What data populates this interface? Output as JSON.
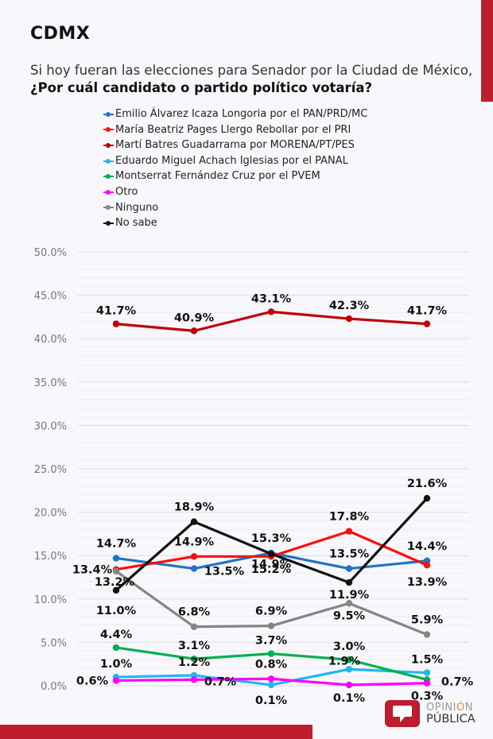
{
  "header": {
    "title": "CDMX",
    "subtitle_plain": "Si hoy fueran las elecciones para Senador por la Ciudad de México, ",
    "subtitle_bold": "¿Por cuál candidato o partido político votaría?"
  },
  "brand": {
    "accent_color": "#bd1e2d",
    "logo_line1_a": "OPINI",
    "logo_line1_b": "Ó",
    "logo_line1_c": "N",
    "logo_line2": "PÚBLICA",
    "logo_accent": "#f0882a"
  },
  "chart_data": {
    "type": "line",
    "title": "",
    "xlabel": "",
    "ylabel": "",
    "x": [
      1,
      2,
      3,
      4,
      5
    ],
    "categories": [
      "",
      "",
      "",
      "",
      ""
    ],
    "ylim": [
      0,
      50
    ],
    "yticks": [
      "0.0%",
      "5.0%",
      "10.0%",
      "15.0%",
      "20.0%",
      "25.0%",
      "30.0%",
      "35.0%",
      "40.0%",
      "45.0%",
      "50.0%"
    ],
    "grid": true,
    "legend_position": "top",
    "series": [
      {
        "name": "Emilio Álvarez Icaza Longoria por el PAN/PRD/MC",
        "color": "#1f74c4",
        "values": [
          14.7,
          13.5,
          15.3,
          13.5,
          14.4
        ]
      },
      {
        "name": "María Beatriz Pages Llergo Rebollar por el PRI",
        "color": "#ff0d0d",
        "values": [
          13.4,
          14.9,
          14.9,
          17.8,
          13.9
        ]
      },
      {
        "name": "Martí Batres Guadarrama por MORENA/PT/PES",
        "color": "#c00000",
        "values": [
          41.7,
          40.9,
          43.1,
          42.3,
          41.7
        ]
      },
      {
        "name": "Eduardo Miguel Achach Iglesias por el PANAL",
        "color": "#1fb8f0",
        "values": [
          1.0,
          1.2,
          0.1,
          1.9,
          1.5
        ]
      },
      {
        "name": "Montserrat Fernández Cruz por el PVEM",
        "color": "#00b050",
        "values": [
          4.4,
          3.1,
          3.7,
          3.0,
          0.7
        ]
      },
      {
        "name": "Otro",
        "color": "#ff00ff",
        "values": [
          0.6,
          0.7,
          0.8,
          0.1,
          0.3
        ]
      },
      {
        "name": "Ninguno",
        "color": "#858585",
        "values": [
          13.2,
          6.8,
          6.9,
          9.5,
          5.9
        ]
      },
      {
        "name": "No sabe",
        "color": "#111111",
        "values": [
          11.0,
          18.9,
          15.2,
          11.9,
          21.6
        ]
      }
    ],
    "labels": [
      [
        "14.7%",
        "13.5%",
        "15.3%",
        "13.5%",
        "14.4%"
      ],
      [
        "13.4%",
        "14.9%",
        "14.9%",
        "17.8%",
        "13.9%"
      ],
      [
        "41.7%",
        "40.9%",
        "43.1%",
        "42.3%",
        "41.7%"
      ],
      [
        "1.0%",
        "1.2%",
        "0.1%",
        "1.9%",
        "1.5%"
      ],
      [
        "4.4%",
        "3.1%",
        "3.7%",
        "3.0%",
        "0.7%"
      ],
      [
        "0.6%",
        "0.7%",
        "0.8%",
        "0.1%",
        "0.3%"
      ],
      [
        "13.2%",
        "6.8%",
        "6.9%",
        "9.5%",
        "5.9%"
      ],
      [
        "11.0%",
        "18.9%",
        "15.2%",
        "11.9%",
        "21.6%"
      ]
    ]
  }
}
